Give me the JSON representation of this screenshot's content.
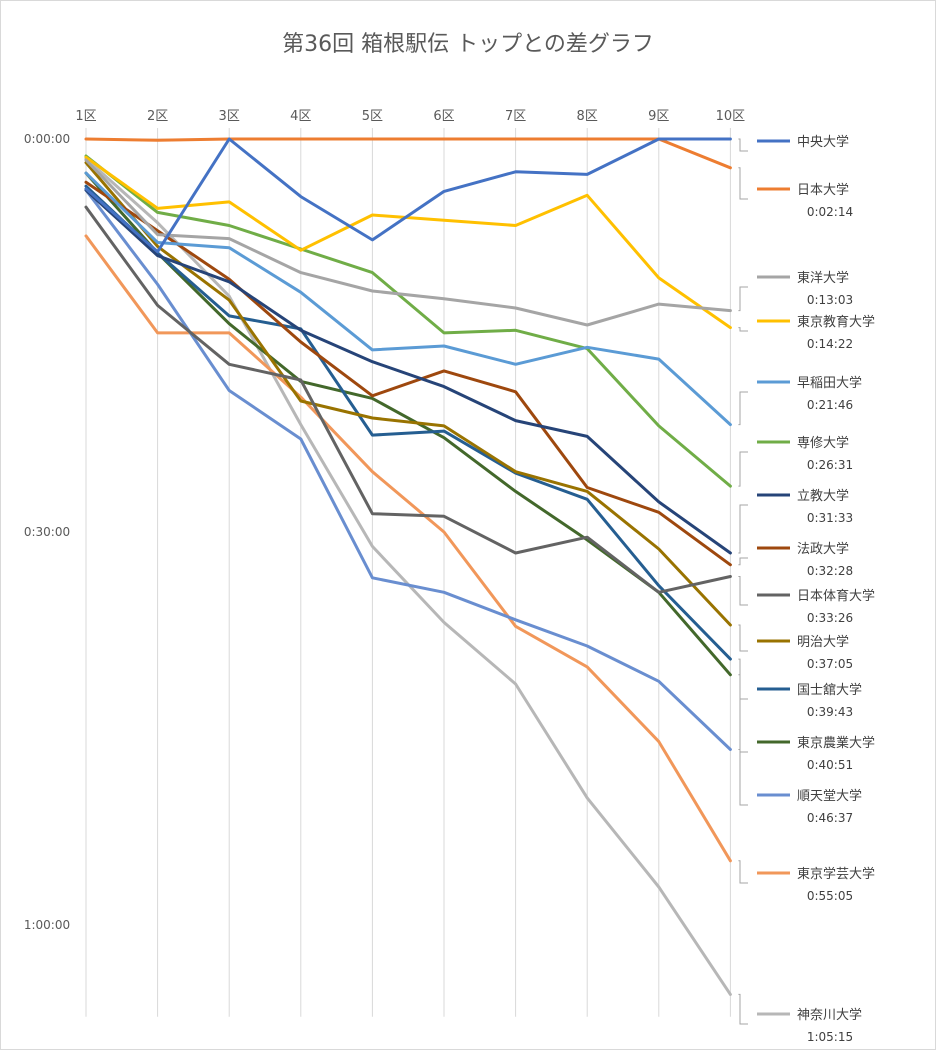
{
  "chart_data": {
    "type": "line",
    "title": "第36回 箱根駅伝 トップとの差グラフ",
    "x": [
      "1区",
      "2区",
      "3区",
      "4区",
      "5区",
      "6区",
      "7区",
      "8区",
      "9区",
      "10区"
    ],
    "y_tick_labels": [
      "0:00:00",
      "0:30:00",
      "1:00:00"
    ],
    "y_ticks_minutes": [
      0,
      30,
      60
    ],
    "ylim_minutes": [
      0,
      67
    ],
    "y_inverted": true,
    "xaxis_position": "top",
    "grid_vertical": true,
    "legend_position": "right",
    "series": [
      {
        "name": "中央大学",
        "color": "#4472C4",
        "label": "",
        "values": [
          3.8,
          8.6,
          0,
          4.4,
          7.7,
          4.0,
          2.5,
          2.7,
          0,
          0
        ]
      },
      {
        "name": "日本大学",
        "color": "#ED7D31",
        "label": "0:02:14",
        "values": [
          0,
          0.1,
          0,
          0,
          0,
          0,
          0,
          0,
          0,
          2.2
        ]
      },
      {
        "name": "東洋大学",
        "color": "#A5A5A5",
        "label": "0:13:03",
        "values": [
          1.6,
          7.3,
          7.6,
          10.2,
          11.6,
          12.2,
          12.9,
          14.2,
          12.6,
          13.1
        ]
      },
      {
        "name": "東京教育大学",
        "color": "#FFC000",
        "label": "0:14:22",
        "values": [
          1.4,
          5.3,
          4.8,
          8.5,
          5.8,
          6.2,
          6.6,
          4.3,
          10.6,
          14.4
        ]
      },
      {
        "name": "早稲田大学",
        "color": "#5B9BD5",
        "label": "0:21:46",
        "values": [
          2.6,
          7.9,
          8.3,
          11.7,
          16.1,
          15.8,
          17.2,
          15.9,
          16.8,
          21.8
        ]
      },
      {
        "name": "専修大学",
        "color": "#70AD47",
        "label": "0:26:31",
        "values": [
          1.3,
          5.6,
          6.6,
          8.4,
          10.2,
          14.8,
          14.6,
          16.0,
          21.9,
          26.5
        ]
      },
      {
        "name": "立教大学",
        "color": "#264478",
        "label": "0:31:33",
        "values": [
          3.9,
          8.9,
          10.9,
          14.6,
          17.0,
          18.9,
          21.5,
          22.7,
          27.7,
          31.6
        ]
      },
      {
        "name": "法政大学",
        "color": "#9E480E",
        "label": "0:32:28",
        "values": [
          3.3,
          7.0,
          10.7,
          15.5,
          19.6,
          17.7,
          19.3,
          26.6,
          28.5,
          32.5
        ]
      },
      {
        "name": "日本体育大学",
        "color": "#636363",
        "label": "0:33:26",
        "values": [
          5.2,
          12.7,
          17.2,
          18.4,
          28.6,
          28.8,
          31.6,
          30.4,
          34.6,
          33.4
        ]
      },
      {
        "name": "明治大学",
        "color": "#997300",
        "label": "0:37:05",
        "values": [
          1.8,
          8.2,
          12.3,
          20.0,
          21.3,
          21.9,
          25.4,
          26.9,
          31.3,
          37.1
        ]
      },
      {
        "name": "国士舘大学",
        "color": "#255E91",
        "label": "0:39:43",
        "values": [
          3.6,
          8.7,
          13.5,
          14.5,
          22.6,
          22.3,
          25.5,
          27.5,
          34.1,
          39.7
        ]
      },
      {
        "name": "東京農業大学",
        "color": "#43682B",
        "label": "0:40:51",
        "values": [
          2.6,
          8.7,
          14.1,
          18.5,
          19.8,
          22.8,
          26.9,
          30.6,
          34.6,
          40.9
        ]
      },
      {
        "name": "順天堂大学",
        "color": "#698ED0",
        "label": "0:46:37",
        "values": [
          3.9,
          11.1,
          19.2,
          22.9,
          33.5,
          34.6,
          36.7,
          38.7,
          41.4,
          46.6
        ]
      },
      {
        "name": "東京学芸大学",
        "color": "#F1975A",
        "label": "0:55:05",
        "values": [
          7.4,
          14.8,
          14.8,
          19.7,
          25.4,
          30.0,
          37.2,
          40.3,
          46.0,
          55.1
        ]
      },
      {
        "name": "神奈川大学",
        "color": "#B7B7B7",
        "label": "1:05:15",
        "values": [
          1.5,
          6.4,
          12.0,
          21.8,
          31.1,
          36.9,
          41.6,
          50.3,
          57.1,
          65.3
        ]
      }
    ]
  }
}
